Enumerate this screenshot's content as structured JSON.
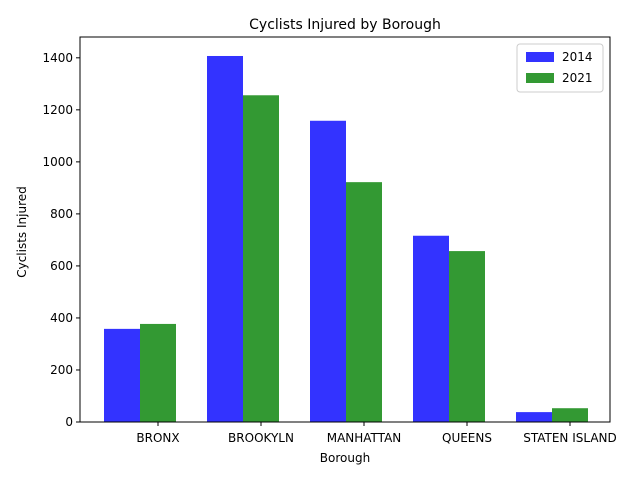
{
  "chart_data": {
    "type": "bar",
    "title": "Cyclists Injured by Borough",
    "xlabel": "Borough",
    "ylabel": "Cyclists Injured",
    "categories": [
      "BRONX",
      "BROOKYLN",
      "MANHATTAN",
      "QUEENS",
      "STATEN ISLAND"
    ],
    "series": [
      {
        "name": "2014",
        "color": "#3333ff",
        "values": [
          358,
          1407,
          1158,
          716,
          38
        ]
      },
      {
        "name": "2021",
        "color": "#339933",
        "values": [
          377,
          1256,
          922,
          657,
          53
        ]
      }
    ],
    "ylim": [
      0,
      1480
    ],
    "yticks": [
      0,
      200,
      400,
      600,
      800,
      1000,
      1200,
      1400
    ],
    "grid": false,
    "legend_position": "top-right"
  }
}
